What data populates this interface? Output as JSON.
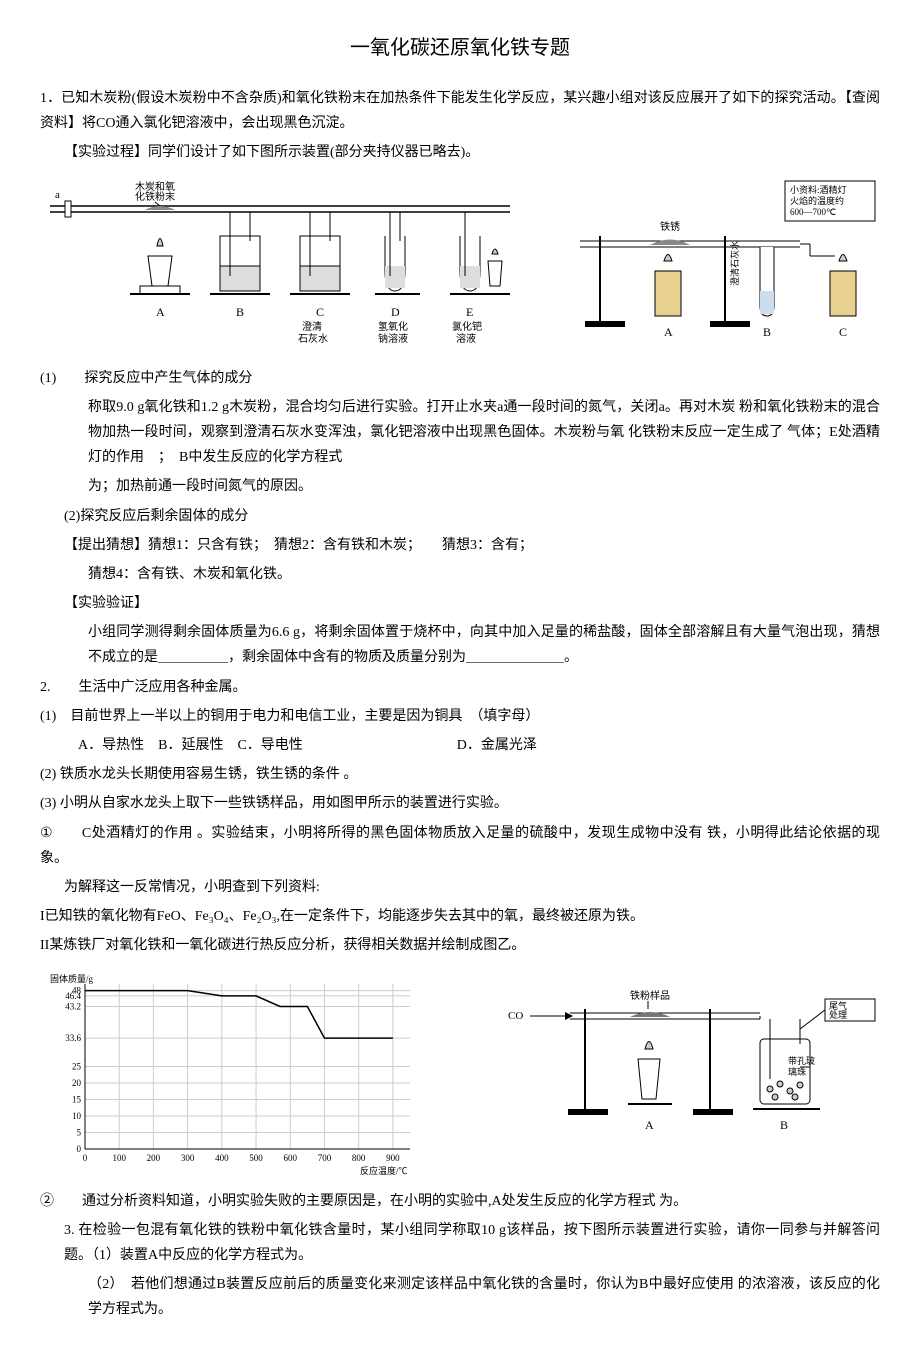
{
  "title": "一氧化碳还原氧化铁专题",
  "q1": {
    "stem": "1．已知木炭粉(假设木炭粉中不含杂质)和氧化铁粉末在加热条件下能发生化学反应，某兴趣小组对该反应展开了如下的探究活动。【查阅资料】将CO通入氯化钯溶液中，会出现黑色沉淀。",
    "proc": "【实验过程】同学们设计了如下图所示装置(部分夹持仪器已略去)。",
    "diagram1": {
      "label_top": "木炭和氧化铁粉末",
      "a_label": "a",
      "devices": [
        "A",
        "B",
        "C",
        "D",
        "E"
      ],
      "captions": [
        "",
        "",
        "澄清石灰水",
        "氢氧化钠溶液",
        "氯化钯溶液"
      ],
      "colors": {
        "line": "#000000",
        "flame": "#b0b0b0",
        "liquid": "#d0d0d0"
      }
    },
    "diagram2": {
      "note": "小资料：酒精灯火焰的温度约600—700℃",
      "labels": [
        "A",
        "B",
        "C"
      ],
      "tube_label": "铁锈",
      "limewater": "澄清石灰水"
    },
    "part1_head": "(1)　　探究反应中产生气体的成分",
    "part1_body1": "称取9.0 g氧化铁和1.2 g木炭粉，混合均匀后进行实验。打开止水夹a通一段时间的氮气，关闭a。再对木炭 粉和氧化铁粉末的混合物加热一段时间，观察到澄清石灰水变浑浊，氯化钯溶液中出现黑色固体。木炭粉与氧 化铁粉末反应一定生成了 气体；E处酒精灯的作用　；　B中发生反应的化学方程式",
    "part1_body2": "为；加热前通一段时间氮气的原因。",
    "part2_head": "(2)探究反应后剩余固体的成分",
    "guess_head": "【提出猜想】猜想1：只含有铁；　猜想2：含有铁和木炭；　　猜想3：含有；",
    "guess4": "猜想4：含有铁、木炭和氧化铁。",
    "verify_head": "【实验验证】",
    "verify_body": "小组同学测得剩余固体质量为6.6 g，将剩余固体置于烧杯中，向其中加入足量的稀盐酸，固体全部溶解且有大量气泡出现，猜想不成立的是＿＿＿＿＿，剩余固体中含有的物质及质量分别为＿＿＿＿＿＿＿。"
  },
  "q2": {
    "stem": "2.　　生活中广泛应用各种金属。",
    "p1": "(1)　目前世界上一半以上的铜用于电力和电信工业，主要是因为铜具　（填字母）",
    "opts": "　A．导热性　B．延展性　C．导电性　　　　　　　　　　　D．金属光泽",
    "p2": "(2) 铁质水龙头长期使用容易生锈，铁生锈的条件 。",
    "p3_a": "(3) 小明从自家水龙头上取下一些铁锈样品，用如图甲所示的装置进行实验。",
    "p3_b": "①　　C处酒精灯的作用 。实验结束，小明将所得的黑色固体物质放入足量的硫酸中，发现生成物中没有 铁，小明得此结论依据的现象。",
    "p3_c": "为解释这一反常情况，小明查到下列资料:",
    "res1": "I已知铁的氧化物有FeO、Fe₃O₄、Fe₂O₃,在一定条件下，均能逐步失去其中的氧，最终被还原为铁。",
    "res2": "II某炼铁厂对氧化铁和一氧化碳进行热反应分析，获得相关数据并绘制成图乙。",
    "p3_d": "②　　通过分析资料知道，小明实验失败的主要原因是，在小明的实验中,A处发生反应的化学方程式 为。"
  },
  "chart": {
    "ylabel": "固体质量/g",
    "xlabel": "反应温度/℃",
    "y_ticks": [
      0,
      5,
      10,
      15,
      20,
      25,
      33.6,
      43.2,
      46.4,
      48
    ],
    "x_ticks": [
      0,
      100,
      200,
      300,
      400,
      500,
      600,
      700,
      800,
      900
    ],
    "xlim": [
      0,
      950
    ],
    "ylim": [
      0,
      50
    ],
    "line_pts": [
      [
        0,
        48
      ],
      [
        300,
        48
      ],
      [
        400,
        46.4
      ],
      [
        500,
        46.4
      ],
      [
        570,
        43.2
      ],
      [
        650,
        43.2
      ],
      [
        700,
        33.6
      ],
      [
        900,
        33.6
      ]
    ],
    "line_color": "#000000",
    "grid_color": "#cccccc",
    "bg": "#ffffff",
    "fontsize": 9
  },
  "diagram3": {
    "co": "CO",
    "sample": "铁粉样品",
    "bottle": "带孔玻璃珠",
    "tail": "尾气处理",
    "labels": [
      "A",
      "B"
    ]
  },
  "q3": {
    "stem": "3. 在检验一包混有氧化铁的铁粉中氧化铁含量时，某小组同学称取10 g该样品，按下图所示装置进行实验，请你一同参与并解答问题。（1）装置A中反应的化学方程式为。",
    "p2": "（2）　若他们想通过B装置反应前后的质量变化来测定该样品中氧化铁的含量时，你认为B中最好应使用 的浓溶液，该反应的化学方程式为。"
  }
}
